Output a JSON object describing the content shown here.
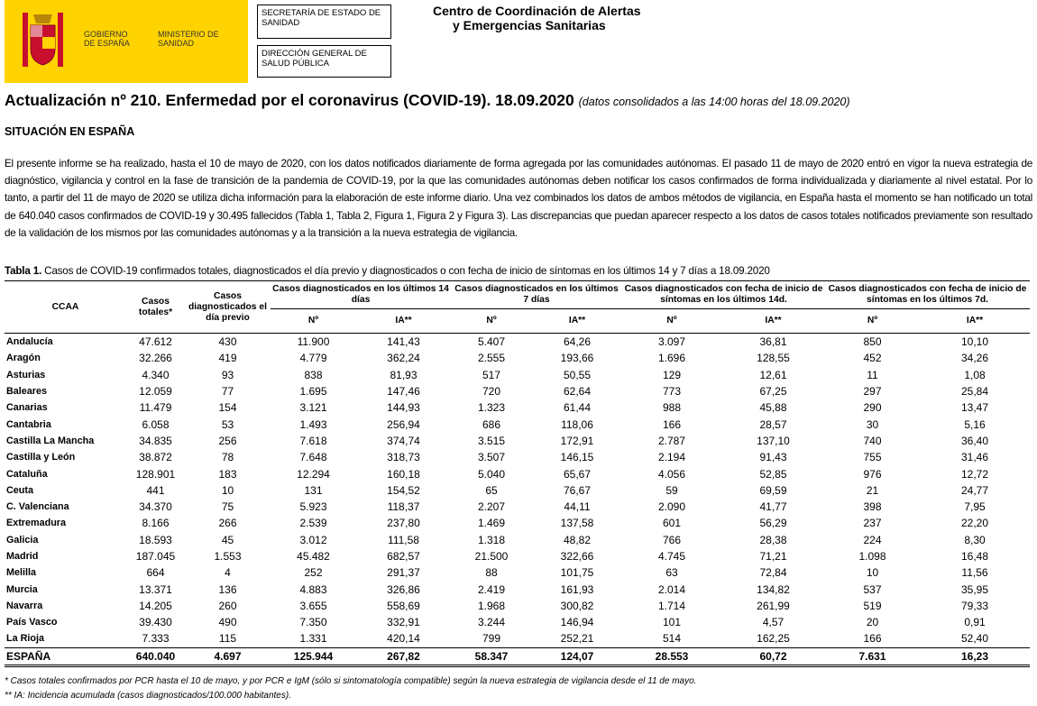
{
  "header": {
    "gov": "GOBIERNO DE ESPAÑA",
    "ministry": "MINISTERIO DE SANIDAD",
    "box1": "SECRETARÍA DE ESTADO DE SANIDAD",
    "box2": "DIRECCIÓN GENERAL DE SALUD PÚBLICA",
    "center": [
      "Centro de Coordinación de Alertas",
      "y Emergencias Sanitarias"
    ]
  },
  "title": "Actualización nº 210. Enfermedad por el coronavirus (COVID-19). 18.09.2020",
  "subtitle": "(datos consolidados a las 14:00 horas del 18.09.2020)",
  "section": "SITUACIÓN EN ESPAÑA",
  "paragraph": "El presente informe se ha realizado, hasta el 10 de mayo de 2020, con los datos notificados diariamente de forma agregada por las comunidades autónomas. El pasado 11 de mayo de 2020 entró en vigor la nueva estrategia de diagnóstico, vigilancia y control en la fase de transición de la pandemia de COVID-19, por la que las comunidades autónomas deben notificar los casos confirmados de forma individualizada y diariamente al nivel estatal. Por lo tanto, a partir del 11 de mayo de 2020 se utiliza dicha información para la elaboración de este informe diario. Una vez combinados los datos de ambos métodos de vigilancia, en España hasta el momento se han notificado un total de 640.040 casos confirmados de COVID-19 y 30.495 fallecidos (Tabla 1, Tabla 2, Figura 1, Figura 2 y Figura 3). Las discrepancias que puedan aparecer respecto a los datos de casos totales notificados previamente son resultado de la validación de los mismos por las comunidades autónomas y a la transición a la nueva estrategia de vigilancia.",
  "table": {
    "caption_label": "Tabla 1.",
    "caption": "Casos de COVID-19 confirmados totales, diagnosticados el día previo y diagnosticados o con fecha de inicio de síntomas en los últimos 14 y 7 días a 18.09.2020",
    "columns": [
      "CCAA",
      "Casos totales*",
      "Casos diagnosticados el día previo"
    ],
    "groups": [
      {
        "label": "Casos diagnosticados en los últimos 14 días",
        "sub": [
          "Nº",
          "IA**"
        ]
      },
      {
        "label": "Casos diagnosticados en los últimos 7 días",
        "sub": [
          "Nº",
          "IA**"
        ]
      },
      {
        "label": "Casos diagnosticados con fecha de inicio de síntomas en los últimos 14d.",
        "sub": [
          "Nº",
          "IA**"
        ]
      },
      {
        "label": "Casos diagnosticados con fecha de inicio de síntomas en los últimos 7d.",
        "sub": [
          "Nº",
          "IA**"
        ]
      }
    ],
    "rows": [
      [
        "Andalucía",
        "47.612",
        "430",
        "11.900",
        "141,43",
        "5.407",
        "64,26",
        "3.097",
        "36,81",
        "850",
        "10,10"
      ],
      [
        "Aragón",
        "32.266",
        "419",
        "4.779",
        "362,24",
        "2.555",
        "193,66",
        "1.696",
        "128,55",
        "452",
        "34,26"
      ],
      [
        "Asturias",
        "4.340",
        "93",
        "838",
        "81,93",
        "517",
        "50,55",
        "129",
        "12,61",
        "11",
        "1,08"
      ],
      [
        "Baleares",
        "12.059",
        "77",
        "1.695",
        "147,46",
        "720",
        "62,64",
        "773",
        "67,25",
        "297",
        "25,84"
      ],
      [
        "Canarias",
        "11.479",
        "154",
        "3.121",
        "144,93",
        "1.323",
        "61,44",
        "988",
        "45,88",
        "290",
        "13,47"
      ],
      [
        "Cantabria",
        "6.058",
        "53",
        "1.493",
        "256,94",
        "686",
        "118,06",
        "166",
        "28,57",
        "30",
        "5,16"
      ],
      [
        "Castilla La Mancha",
        "34.835",
        "256",
        "7.618",
        "374,74",
        "3.515",
        "172,91",
        "2.787",
        "137,10",
        "740",
        "36,40"
      ],
      [
        "Castilla y León",
        "38.872",
        "78",
        "7.648",
        "318,73",
        "3.507",
        "146,15",
        "2.194",
        "91,43",
        "755",
        "31,46"
      ],
      [
        "Cataluña",
        "128.901",
        "183",
        "12.294",
        "160,18",
        "5.040",
        "65,67",
        "4.056",
        "52,85",
        "976",
        "12,72"
      ],
      [
        "Ceuta",
        "441",
        "10",
        "131",
        "154,52",
        "65",
        "76,67",
        "59",
        "69,59",
        "21",
        "24,77"
      ],
      [
        "C. Valenciana",
        "34.370",
        "75",
        "5.923",
        "118,37",
        "2.207",
        "44,11",
        "2.090",
        "41,77",
        "398",
        "7,95"
      ],
      [
        "Extremadura",
        "8.166",
        "266",
        "2.539",
        "237,80",
        "1.469",
        "137,58",
        "601",
        "56,29",
        "237",
        "22,20"
      ],
      [
        "Galicia",
        "18.593",
        "45",
        "3.012",
        "111,58",
        "1.318",
        "48,82",
        "766",
        "28,38",
        "224",
        "8,30"
      ],
      [
        "Madrid",
        "187.045",
        "1.553",
        "45.482",
        "682,57",
        "21.500",
        "322,66",
        "4.745",
        "71,21",
        "1.098",
        "16,48"
      ],
      [
        "Melilla",
        "664",
        "4",
        "252",
        "291,37",
        "88",
        "101,75",
        "63",
        "72,84",
        "10",
        "11,56"
      ],
      [
        "Murcia",
        "13.371",
        "136",
        "4.883",
        "326,86",
        "2.419",
        "161,93",
        "2.014",
        "134,82",
        "537",
        "35,95"
      ],
      [
        "Navarra",
        "14.205",
        "260",
        "3.655",
        "558,69",
        "1.968",
        "300,82",
        "1.714",
        "261,99",
        "519",
        "79,33"
      ],
      [
        "País Vasco",
        "39.430",
        "490",
        "7.350",
        "332,91",
        "3.244",
        "146,94",
        "101",
        "4,57",
        "20",
        "0,91"
      ],
      [
        "La Rioja",
        "7.333",
        "115",
        "1.331",
        "420,14",
        "799",
        "252,21",
        "514",
        "162,25",
        "166",
        "52,40"
      ]
    ],
    "total": [
      "ESPAÑA",
      "640.040",
      "4.697",
      "125.944",
      "267,82",
      "58.347",
      "124,07",
      "28.553",
      "60,72",
      "7.631",
      "16,23"
    ]
  },
  "footnotes": [
    "*  Casos totales confirmados por PCR hasta el 10 de mayo, y por PCR e IgM (sólo si sintomatología compatible) según la nueva estrategia de vigilancia desde el 11 de mayo.",
    "** IA: Incidencia acumulada (casos diagnosticados/100.000 habitantes)."
  ]
}
